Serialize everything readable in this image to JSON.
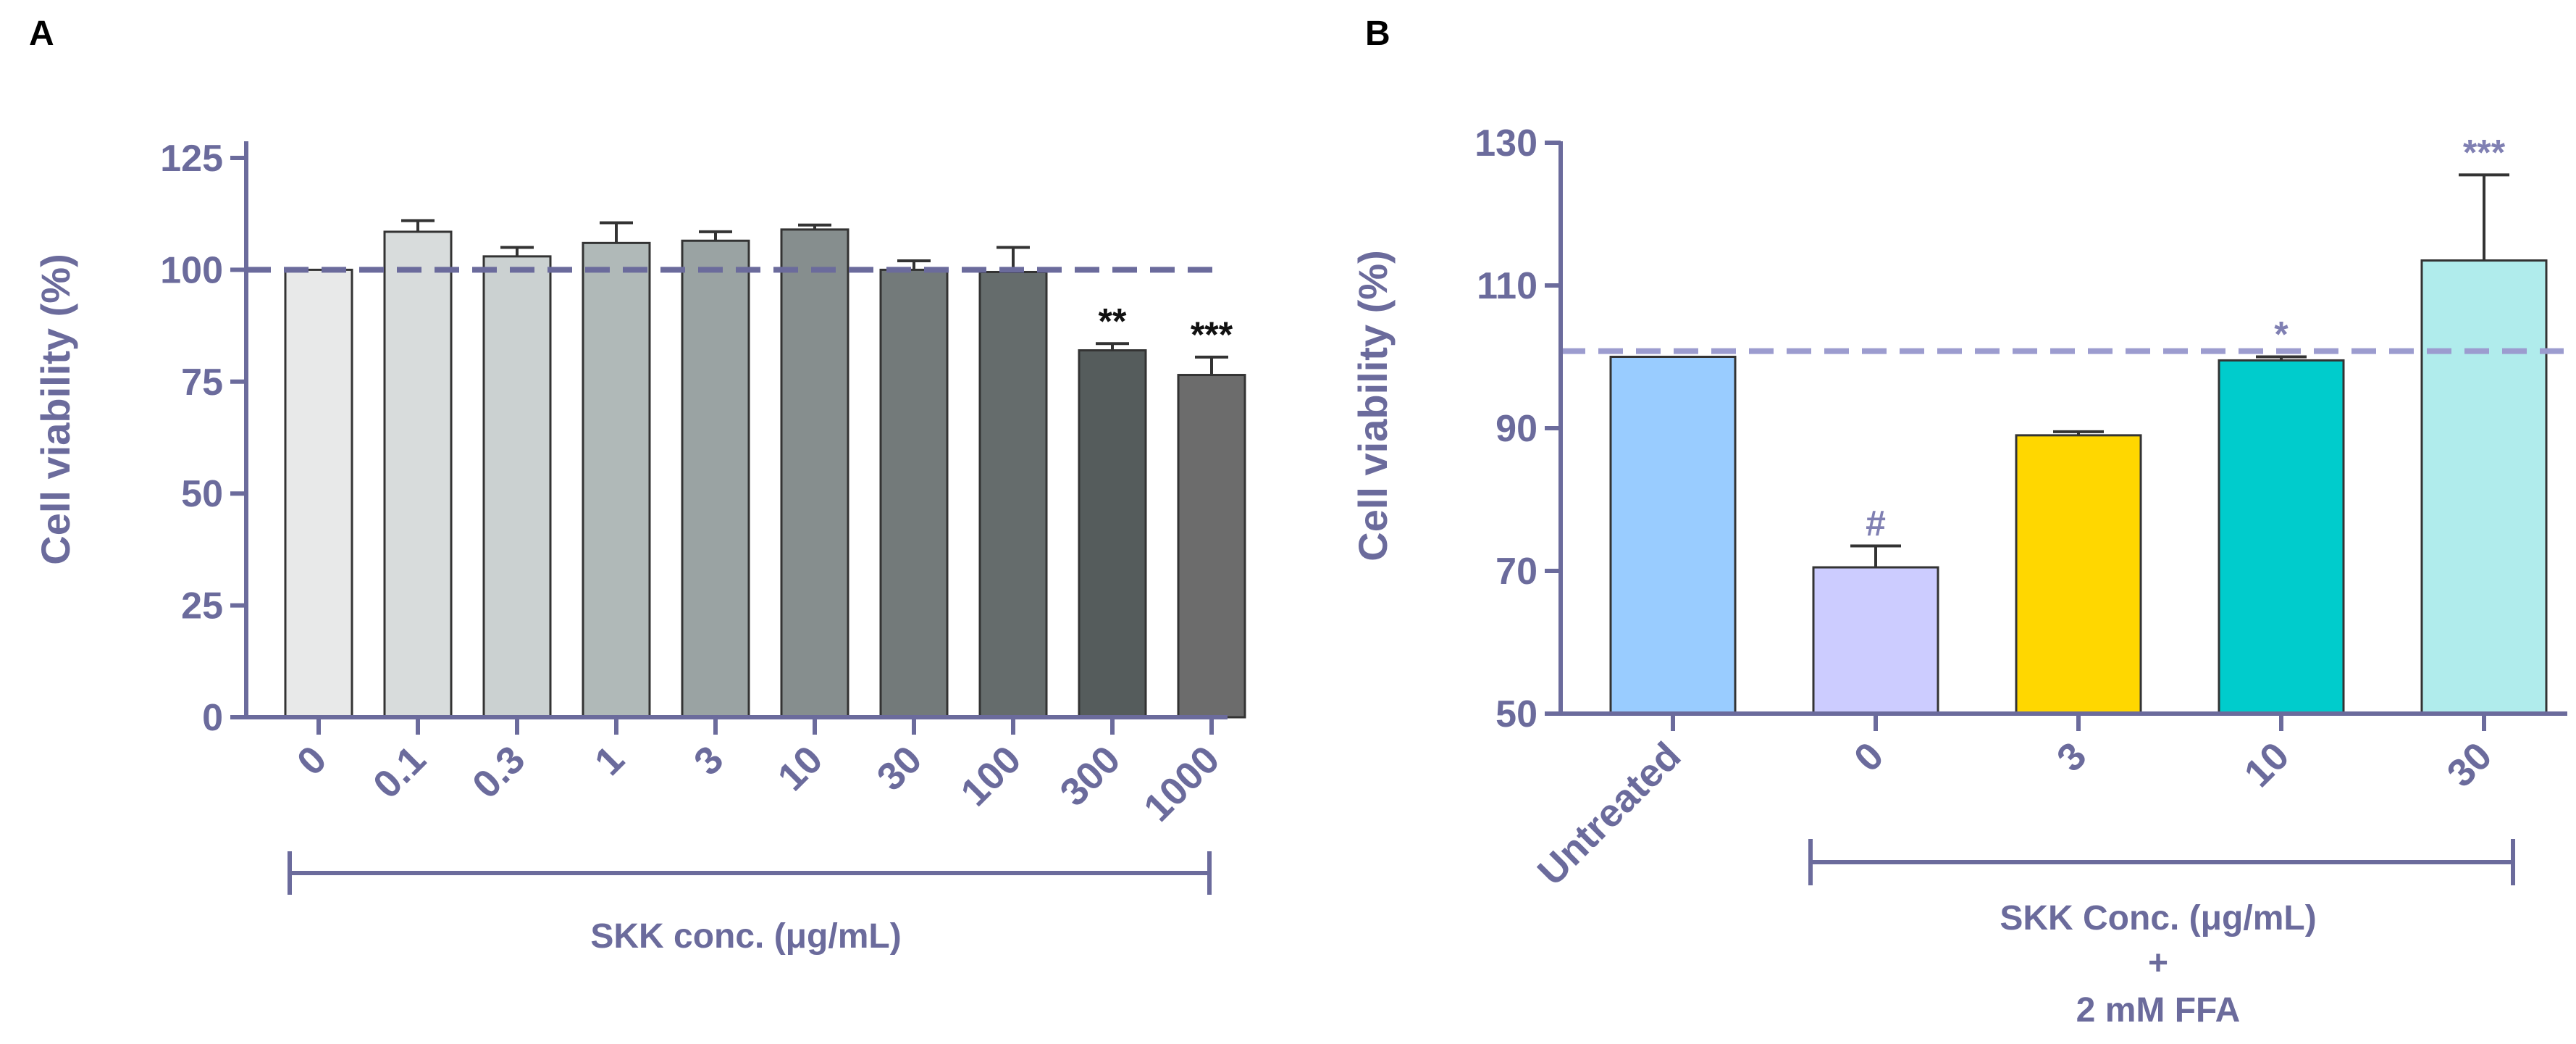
{
  "chart_data": [
    {
      "panel": "A",
      "type": "bar",
      "ylabel": "Cell viability (%)",
      "xlabel": "SKK conc. (μg/mL)",
      "categories": [
        "0",
        "0.1",
        "0.3",
        "1",
        "3",
        "10",
        "30",
        "100",
        "300",
        "1000"
      ],
      "values": [
        100,
        108.5,
        103,
        106,
        106.5,
        109,
        100,
        99.5,
        82,
        76.5
      ],
      "errors": [
        0,
        2.5,
        2,
        4.5,
        2,
        1,
        2,
        5.5,
        1.5,
        4
      ],
      "annotations": [
        "",
        "",
        "",
        "",
        "",
        "",
        "",
        "",
        "**",
        "***"
      ],
      "colors": [
        "#e8e9e9",
        "#d8dcdc",
        "#cbd1d1",
        "#b0b9b8",
        "#9aa3a3",
        "#868e8e",
        "#737a7a",
        "#656c6c",
        "#555c5c",
        "#6c6c6c"
      ],
      "ylim": [
        0,
        125
      ],
      "yticks": [
        0,
        25,
        50,
        75,
        100,
        125
      ],
      "reference_line": 100
    },
    {
      "panel": "B",
      "type": "bar",
      "ylabel": "Cell viability (%)",
      "categories": [
        "Untreated",
        "0",
        "3",
        "10",
        "30"
      ],
      "values": [
        100,
        70.5,
        89,
        99.5,
        113.5
      ],
      "errors": [
        0,
        3,
        0.5,
        0.5,
        12
      ],
      "annotations": [
        "",
        "#",
        "",
        "*",
        "***"
      ],
      "colors": [
        "#99ccff",
        "#ccccff",
        "#ffd700",
        "#00cccc",
        "#b0ecec"
      ],
      "group_label_line1": "SKK Conc. (μg/mL)",
      "group_label_line2": "+",
      "group_label_line3": "2 mM FFA",
      "ylim": [
        50,
        130
      ],
      "yticks": [
        50,
        70,
        90,
        110,
        130
      ],
      "reference_line": 100.8
    }
  ],
  "theme": {
    "axis_color": "#6b6b9c",
    "ref_line_color_a": "#6b6b9c",
    "ref_line_color_b": "#9c9ccf",
    "annotation_color_b": "#8080b3"
  }
}
